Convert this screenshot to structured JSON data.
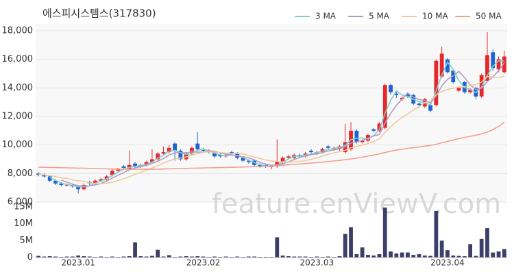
{
  "chart_data": [
    {
      "type": "candlestick",
      "title": "에스피시스템스(317830)",
      "watermark": "feature.enViewV.com",
      "ylim": [
        6000,
        18000
      ],
      "yticks": [
        {
          "value": 6000,
          "label": "6,000"
        },
        {
          "value": 8000,
          "label": "8,000"
        },
        {
          "value": 10000,
          "label": "10,000"
        },
        {
          "value": 12000,
          "label": "12,000"
        },
        {
          "value": 14000,
          "label": "14,000"
        },
        {
          "value": 16000,
          "label": "16,000"
        },
        {
          "value": 18000,
          "label": "18,000"
        }
      ],
      "grid": true,
      "legend": "top-right",
      "up_color": "#e8272b",
      "down_color": "#1e63d0",
      "open": [
        8000,
        7900,
        7800,
        7500,
        7300,
        7200,
        7200,
        7100,
        6900,
        7400,
        7300,
        7500,
        7600,
        7900,
        8200,
        8500,
        8300,
        8700,
        8500,
        8600,
        8800,
        9000,
        9400,
        9500,
        10100,
        9600,
        9000,
        9400,
        10100,
        9700,
        9600,
        9500,
        9300,
        9200,
        9500,
        9400,
        9100,
        8900,
        8900,
        8600,
        8600,
        8500,
        8500,
        8800,
        9100,
        9100,
        9300,
        9200,
        9600,
        9400,
        9500,
        9900,
        9700,
        9700,
        9500,
        9700,
        11000,
        10200,
        10300,
        11100,
        11000,
        11200,
        14200,
        13600,
        13200,
        13600,
        13500,
        12900,
        12700,
        12800,
        12800,
        14800,
        16000,
        15200,
        13800,
        14400,
        13700,
        14000,
        13400,
        14500,
        16500,
        15300,
        15100
      ],
      "high": [
        8100,
        8000,
        7900,
        7600,
        7400,
        7300,
        7300,
        7200,
        7300,
        7500,
        7600,
        7700,
        7900,
        8300,
        8400,
        8600,
        9600,
        8800,
        8700,
        8900,
        9700,
        9500,
        9900,
        10000,
        10200,
        9700,
        9500,
        9900,
        10900,
        9800,
        9700,
        9600,
        9400,
        9400,
        9600,
        9500,
        9200,
        9000,
        9000,
        8700,
        8700,
        8600,
        10400,
        9200,
        9300,
        9400,
        9400,
        9500,
        9700,
        9600,
        9800,
        10000,
        9900,
        10000,
        11500,
        11600,
        11100,
        10400,
        10800,
        11200,
        11600,
        14300,
        14300,
        13800,
        13400,
        13700,
        13600,
        13000,
        13300,
        12900,
        16000,
        16900,
        16100,
        15300,
        14100,
        14500,
        14000,
        14100,
        15000,
        17900,
        16700,
        16200,
        16600
      ],
      "low": [
        7800,
        7700,
        7400,
        7200,
        7100,
        7100,
        7000,
        6600,
        6800,
        7200,
        7200,
        7400,
        7500,
        7800,
        8100,
        8300,
        8200,
        8400,
        8400,
        8500,
        8700,
        8900,
        9300,
        9400,
        8900,
        8900,
        8900,
        9300,
        9600,
        9500,
        9400,
        9100,
        9100,
        9100,
        9300,
        9000,
        8800,
        8700,
        8500,
        8400,
        8400,
        8300,
        8400,
        8700,
        9000,
        9000,
        9100,
        9100,
        9400,
        9300,
        9400,
        9700,
        9600,
        9600,
        9400,
        9600,
        10100,
        10100,
        10200,
        10900,
        10900,
        11100,
        13500,
        13300,
        13100,
        13300,
        12800,
        12600,
        12600,
        12300,
        12700,
        14700,
        15000,
        14300,
        13700,
        13600,
        13600,
        13200,
        13300,
        14400,
        15200,
        15100,
        15000
      ],
      "close": [
        7900,
        7800,
        7500,
        7300,
        7200,
        7200,
        7100,
        6900,
        7200,
        7300,
        7500,
        7600,
        7800,
        8200,
        8300,
        8400,
        8600,
        8500,
        8600,
        8800,
        9000,
        9400,
        9500,
        9800,
        9600,
        9000,
        9400,
        9800,
        9700,
        9600,
        9500,
        9200,
        9200,
        9300,
        9400,
        9100,
        8900,
        8800,
        8600,
        8500,
        8500,
        8500,
        8800,
        9100,
        9200,
        9300,
        9200,
        9400,
        9500,
        9500,
        9700,
        9800,
        9800,
        9900,
        10200,
        11000,
        10200,
        10300,
        10700,
        11000,
        11500,
        14200,
        13700,
        13500,
        13300,
        13400,
        12900,
        12800,
        13200,
        12400,
        15900,
        16400,
        15100,
        14400,
        14000,
        13700,
        13900,
        13400,
        14900,
        16300,
        15400,
        16000,
        16200
      ],
      "series": [
        {
          "name": "3 MA",
          "color": "#7ccfd0",
          "values": [
            null,
            null,
            7730,
            7530,
            7330,
            7230,
            7170,
            7070,
            7070,
            7130,
            7330,
            7470,
            7630,
            7870,
            8100,
            8300,
            8430,
            8500,
            8570,
            8630,
            8800,
            9070,
            9300,
            9570,
            9630,
            9470,
            9330,
            9400,
            9630,
            9700,
            9600,
            9430,
            9300,
            9230,
            9300,
            9270,
            9130,
            8930,
            8770,
            8630,
            8530,
            8500,
            8600,
            8800,
            9030,
            9200,
            9230,
            9300,
            9370,
            9470,
            9570,
            9670,
            9770,
            9830,
            9970,
            10370,
            10470,
            10500,
            10400,
            10670,
            11070,
            12230,
            13130,
            13800,
            13500,
            13400,
            13200,
            13030,
            12970,
            12800,
            13830,
            14900,
            15800,
            15300,
            14500,
            14030,
            13870,
            13670,
            14070,
            14870,
            15530,
            15900,
            15870
          ]
        },
        {
          "name": "5 MA",
          "color": "#b39ac5",
          "values": [
            null,
            null,
            null,
            null,
            7540,
            7400,
            7260,
            7140,
            7120,
            7140,
            7200,
            7300,
            7480,
            7680,
            7880,
            8060,
            8260,
            8400,
            8480,
            8580,
            8700,
            8860,
            9060,
            9300,
            9460,
            9460,
            9460,
            9520,
            9500,
            9500,
            9600,
            9560,
            9440,
            9360,
            9320,
            9240,
            9180,
            9100,
            8960,
            8780,
            8660,
            8580,
            8580,
            8680,
            8820,
            8980,
            9120,
            9240,
            9320,
            9380,
            9460,
            9580,
            9660,
            9740,
            9880,
            10140,
            10220,
            10320,
            10480,
            10640,
            10740,
            11540,
            12220,
            12780,
            13240,
            13620,
            13360,
            13180,
            13120,
            12940,
            13440,
            14140,
            14600,
            14840,
            15160,
            14720,
            14220,
            13880,
            13980,
            14440,
            14780,
            15200,
            15760
          ]
        },
        {
          "name": "10 MA",
          "color": "#efc99a",
          "values": [
            7950,
            7900,
            7850,
            7800,
            7700,
            7650,
            7550,
            7500,
            7450,
            7340,
            7300,
            7280,
            7310,
            7400,
            7510,
            7630,
            7780,
            7940,
            8080,
            8230,
            8380,
            8560,
            8730,
            8890,
            9020,
            9080,
            9160,
            9290,
            9400,
            9480,
            9530,
            9510,
            9480,
            9430,
            9410,
            9420,
            9370,
            9270,
            9160,
            9050,
            8950,
            8880,
            8840,
            8820,
            8800,
            8820,
            8850,
            8910,
            9000,
            9100,
            9220,
            9350,
            9450,
            9530,
            9630,
            9800,
            9900,
            9990,
            10110,
            10260,
            10440,
            10880,
            11270,
            11630,
            11940,
            12180,
            12450,
            12700,
            12950,
            13090,
            13530,
            13750,
            13890,
            13980,
            14050,
            14080,
            14180,
            14240,
            14410,
            14800,
            14750,
            14710,
            14820
          ]
        },
        {
          "name": "50 MA",
          "color": "#f3a08c",
          "values": [
            8450,
            8440,
            8430,
            8420,
            8410,
            8400,
            8390,
            8380,
            8370,
            8360,
            8350,
            8340,
            8330,
            8320,
            8310,
            8300,
            8300,
            8300,
            8300,
            8300,
            8300,
            8310,
            8320,
            8330,
            8340,
            8350,
            8360,
            8370,
            8380,
            8390,
            8400,
            8410,
            8420,
            8430,
            8440,
            8450,
            8460,
            8470,
            8480,
            8490,
            8500,
            8520,
            8550,
            8580,
            8610,
            8640,
            8670,
            8700,
            8730,
            8760,
            8800,
            8840,
            8880,
            8920,
            8970,
            9020,
            9080,
            9150,
            9220,
            9300,
            9380,
            9470,
            9560,
            9640,
            9700,
            9760,
            9810,
            9860,
            9920,
            9980,
            10050,
            10150,
            10250,
            10350,
            10450,
            10530,
            10610,
            10690,
            10780,
            10900,
            11080,
            11300,
            11600
          ]
        }
      ]
    },
    {
      "type": "bar",
      "color": "#3d3f6b",
      "categories": [
        null,
        null,
        null,
        null,
        null,
        null,
        null,
        "2023.01",
        null,
        null,
        null,
        null,
        null,
        null,
        null,
        null,
        null,
        null,
        null,
        null,
        null,
        null,
        null,
        null,
        null,
        null,
        null,
        null,
        null,
        "2023.02",
        null,
        null,
        null,
        null,
        null,
        null,
        null,
        null,
        null,
        null,
        null,
        null,
        null,
        null,
        null,
        null,
        null,
        null,
        null,
        "2023.03",
        null,
        null,
        null,
        null,
        null,
        null,
        null,
        null,
        null,
        null,
        null,
        null,
        null,
        null,
        null,
        null,
        null,
        null,
        null,
        null,
        null,
        null,
        "2023.04",
        null,
        null,
        null,
        null,
        null,
        null,
        null,
        null,
        null,
        null
      ],
      "ylim": [
        0,
        15000000
      ],
      "yticks": [
        0,
        {
          "value": 5000000,
          "label": "5M"
        },
        {
          "value": 10000000,
          "label": "10M"
        },
        {
          "value": 15000000,
          "label": "15M"
        }
      ],
      "values": [
        500000,
        300000,
        400000,
        300000,
        200000,
        300000,
        300000,
        600000,
        400000,
        300000,
        200000,
        300000,
        200000,
        300000,
        200000,
        300000,
        400000,
        4500000,
        400000,
        300000,
        500000,
        2300000,
        300000,
        700000,
        200000,
        300000,
        400000,
        300000,
        400000,
        300000,
        200000,
        300000,
        200000,
        300000,
        200000,
        300000,
        200000,
        300000,
        300000,
        200000,
        200000,
        200000,
        6000000,
        600000,
        400000,
        300000,
        300000,
        300000,
        200000,
        300000,
        200000,
        300000,
        200000,
        400000,
        7000000,
        9000000,
        1000000,
        3000000,
        800000,
        600000,
        1000000,
        14800000,
        1800000,
        1200000,
        1500000,
        1500000,
        800000,
        1000000,
        600000,
        500000,
        13800000,
        5000000,
        2200000,
        600000,
        500000,
        400000,
        4000000,
        500000,
        5500000,
        8700000,
        1500000,
        1800000,
        2500000
      ]
    }
  ]
}
